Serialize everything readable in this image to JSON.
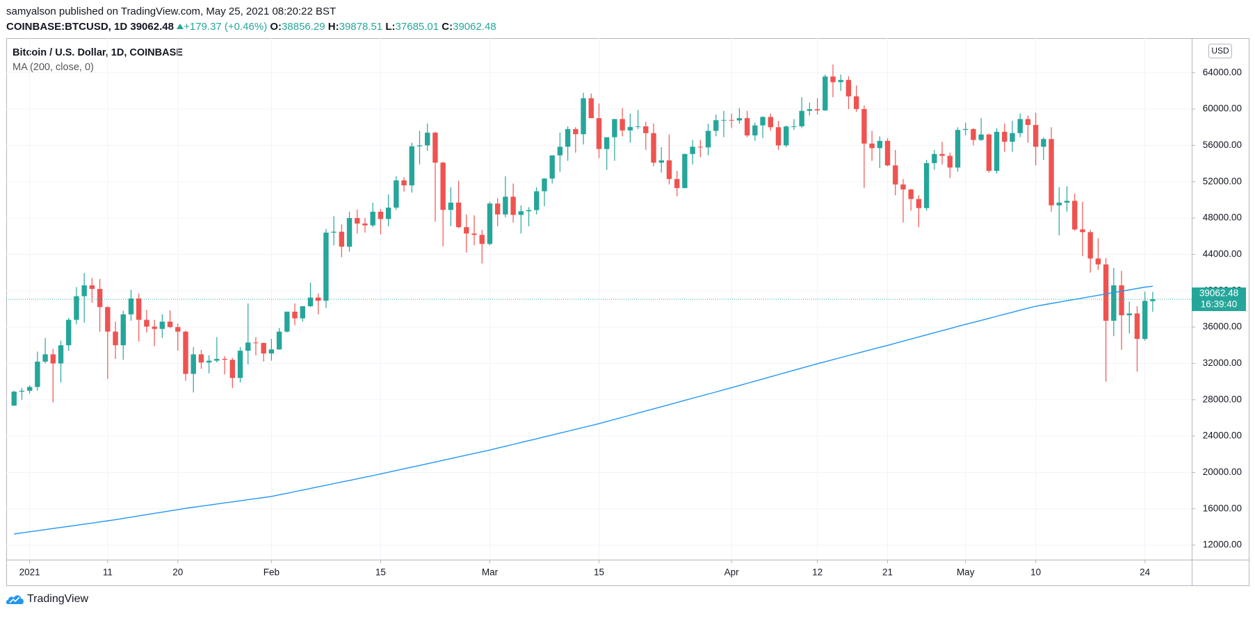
{
  "header": {
    "published": "samyalson published on TradingView.com, May 25, 2021 08:20:22 BST",
    "symbol": "COINBASE:BTCUSD, 1D",
    "change": "+179.37 (+0.46%)",
    "ohlc_labels": [
      "O:",
      "H:",
      "L:",
      "C:"
    ]
  },
  "footer": {
    "brand": "TradingView"
  },
  "chart_data": {
    "type": "candlestick",
    "title": "Bitcoin / U.S. Dollar, 1D, COINBASE",
    "currency": "USD",
    "countdown": "16:39:40",
    "up_color": "#26a69a",
    "down_color": "#ef5350",
    "grid": true,
    "x": [
      "2020-12-30",
      "2020-12-31",
      "2021-01-01",
      "2021-01-02",
      "2021-01-03",
      "2021-01-04",
      "2021-01-05",
      "2021-01-06",
      "2021-01-07",
      "2021-01-08",
      "2021-01-09",
      "2021-01-10",
      "2021-01-11",
      "2021-01-12",
      "2021-01-13",
      "2021-01-14",
      "2021-01-15",
      "2021-01-16",
      "2021-01-17",
      "2021-01-18",
      "2021-01-19",
      "2021-01-20",
      "2021-01-21",
      "2021-01-22",
      "2021-01-23",
      "2021-01-24",
      "2021-01-25",
      "2021-01-26",
      "2021-01-27",
      "2021-01-28",
      "2021-01-29",
      "2021-01-30",
      "2021-01-31",
      "2021-02-01",
      "2021-02-02",
      "2021-02-03",
      "2021-02-04",
      "2021-02-05",
      "2021-02-06",
      "2021-02-07",
      "2021-02-08",
      "2021-02-09",
      "2021-02-10",
      "2021-02-11",
      "2021-02-12",
      "2021-02-13",
      "2021-02-14",
      "2021-02-15",
      "2021-02-16",
      "2021-02-17",
      "2021-02-18",
      "2021-02-19",
      "2021-02-20",
      "2021-02-21",
      "2021-02-22",
      "2021-02-23",
      "2021-02-24",
      "2021-02-25",
      "2021-02-26",
      "2021-02-27",
      "2021-02-28",
      "2021-03-01",
      "2021-03-02",
      "2021-03-03",
      "2021-03-04",
      "2021-03-05",
      "2021-03-06",
      "2021-03-07",
      "2021-03-08",
      "2021-03-09",
      "2021-03-10",
      "2021-03-11",
      "2021-03-12",
      "2021-03-13",
      "2021-03-14",
      "2021-03-15",
      "2021-03-16",
      "2021-03-17",
      "2021-03-18",
      "2021-03-19",
      "2021-03-20",
      "2021-03-21",
      "2021-03-22",
      "2021-03-23",
      "2021-03-24",
      "2021-03-25",
      "2021-03-26",
      "2021-03-27",
      "2021-03-28",
      "2021-03-29",
      "2021-03-30",
      "2021-03-31",
      "2021-04-01",
      "2021-04-02",
      "2021-04-03",
      "2021-04-04",
      "2021-04-05",
      "2021-04-06",
      "2021-04-07",
      "2021-04-08",
      "2021-04-09",
      "2021-04-10",
      "2021-04-11",
      "2021-04-12",
      "2021-04-13",
      "2021-04-14",
      "2021-04-15",
      "2021-04-16",
      "2021-04-17",
      "2021-04-18",
      "2021-04-19",
      "2021-04-20",
      "2021-04-21",
      "2021-04-22",
      "2021-04-23",
      "2021-04-24",
      "2021-04-25",
      "2021-04-26",
      "2021-04-27",
      "2021-04-28",
      "2021-04-29",
      "2021-04-30",
      "2021-05-01",
      "2021-05-02",
      "2021-05-03",
      "2021-05-04",
      "2021-05-05",
      "2021-05-06",
      "2021-05-07",
      "2021-05-08",
      "2021-05-09",
      "2021-05-10",
      "2021-05-11",
      "2021-05-12",
      "2021-05-13",
      "2021-05-14",
      "2021-05-15",
      "2021-05-16",
      "2021-05-17",
      "2021-05-18",
      "2021-05-19",
      "2021-05-20",
      "2021-05-21",
      "2021-05-22",
      "2021-05-23",
      "2021-05-24",
      "2021-05-25"
    ],
    "open": [
      27360,
      28890,
      28990,
      29410,
      32200,
      33000,
      32000,
      34000,
      36800,
      39400,
      40600,
      40200,
      38200,
      35500,
      34000,
      37400,
      39150,
      36800,
      36050,
      35800,
      36600,
      36000,
      35500,
      30850,
      33000,
      32100,
      32300,
      32500,
      32400,
      30400,
      33400,
      34300,
      34250,
      33100,
      33540,
      35500,
      37700,
      36960,
      38300,
      39250,
      38900,
      46400,
      46500,
      44850,
      48000,
      47400,
      47200,
      48700,
      47900,
      49150,
      52150,
      51600,
      55900,
      56000,
      57400,
      54100,
      48900,
      49700,
      47000,
      46300,
      46150,
      45150,
      49600,
      48400,
      50350,
      48350,
      48750,
      48880,
      50950,
      52350,
      54900,
      55850,
      57800,
      57230,
      61190,
      59000,
      55600,
      56900,
      58900,
      57650,
      58030,
      58100,
      57350,
      54100,
      54350,
      52300,
      51300,
      55050,
      55850,
      55780,
      57600,
      58770,
      58800,
      58750,
      59000,
      57100,
      58200,
      59130,
      58000,
      56000,
      58080,
      58100,
      59800,
      59980,
      59850,
      63580,
      62960,
      63200,
      61400,
      60000,
      56200,
      55700,
      56500,
      53800,
      51700,
      51150,
      50100,
      49100,
      54050,
      55050,
      54850,
      53560,
      57700,
      57800,
      56600,
      57200,
      53200,
      57500,
      56400,
      57350,
      58900,
      58250,
      55850,
      56700,
      49400,
      49700,
      49900,
      46750,
      46450,
      43550,
      42900,
      36700,
      40600,
      37300,
      37500,
      34700,
      38856.29
    ],
    "high": [
      29000,
      29300,
      29600,
      33300,
      34800,
      33600,
      34500,
      37000,
      40400,
      41950,
      41400,
      41300,
      38300,
      36600,
      37800,
      40100,
      39700,
      37900,
      36800,
      37400,
      37850,
      36400,
      35600,
      33800,
      33500,
      32900,
      34900,
      32800,
      32600,
      33800,
      38600,
      34900,
      34300,
      34700,
      35900,
      37700,
      38600,
      38300,
      40900,
      39700,
      46800,
      48200,
      47300,
      48700,
      48950,
      48000,
      49700,
      49000,
      50600,
      52600,
      52500,
      56300,
      57600,
      58400,
      57500,
      54200,
      51400,
      52100,
      48400,
      48300,
      46700,
      49800,
      50200,
      52600,
      51800,
      49400,
      49200,
      51400,
      52400,
      54900,
      57400,
      58100,
      58000,
      61800,
      61700,
      60600,
      56900,
      58900,
      60100,
      59500,
      59900,
      58600,
      58400,
      55800,
      57200,
      53200,
      55100,
      56600,
      56600,
      58400,
      59400,
      59800,
      59500,
      60100,
      59800,
      58500,
      59200,
      59500,
      58700,
      58200,
      58900,
      61300,
      60700,
      61200,
      63800,
      64900,
      63800,
      63600,
      62600,
      60400,
      57600,
      57000,
      56800,
      55500,
      52300,
      51200,
      50500,
      54400,
      55500,
      56400,
      55200,
      58000,
      58500,
      57900,
      59000,
      57300,
      57900,
      58400,
      58700,
      59500,
      59300,
      59600,
      56900,
      58000,
      51400,
      51500,
      50700,
      49800,
      46700,
      45800,
      43600,
      42500,
      42200,
      38800,
      38300,
      39900,
      39878.51
    ],
    "low": [
      27320,
      28000,
      28700,
      29000,
      32000,
      27700,
      29900,
      33400,
      36300,
      36500,
      38700,
      35500,
      30300,
      32500,
      32400,
      36700,
      34400,
      35400,
      33900,
      34800,
      35900,
      33400,
      30100,
      28800,
      31400,
      30900,
      32100,
      30800,
      29300,
      29900,
      31900,
      32900,
      32200,
      32300,
      33500,
      35400,
      36200,
      36600,
      38200,
      37400,
      38100,
      45000,
      43700,
      44300,
      46300,
      46400,
      47000,
      46200,
      47100,
      48900,
      50900,
      50800,
      53900,
      55400,
      47600,
      44900,
      47100,
      46900,
      44200,
      45000,
      43000,
      45000,
      47100,
      48100,
      47500,
      46300,
      47100,
      48400,
      49300,
      51800,
      53100,
      54300,
      55200,
      56100,
      59000,
      54600,
      53300,
      54300,
      57000,
      56300,
      57800,
      55500,
      53700,
      53000,
      51700,
      50400,
      51300,
      53900,
      54700,
      54900,
      57000,
      56900,
      57900,
      58400,
      56900,
      56500,
      56800,
      57600,
      55500,
      55800,
      57700,
      57900,
      59300,
      59400,
      59800,
      61300,
      62000,
      60000,
      59700,
      51300,
      54300,
      53500,
      53700,
      50500,
      47500,
      48800,
      47000,
      48800,
      53300,
      53900,
      52400,
      53100,
      57100,
      56000,
      56500,
      53000,
      52900,
      55300,
      55300,
      56900,
      56300,
      53800,
      54400,
      48700,
      46100,
      48700,
      46600,
      43800,
      42000,
      42300,
      30000,
      35000,
      33500,
      35300,
      31100,
      34500,
      37685.01
    ],
    "close": [
      28890,
      28990,
      29410,
      32200,
      33000,
      32000,
      34000,
      36800,
      39400,
      40600,
      40200,
      38200,
      35500,
      34000,
      37400,
      39150,
      36800,
      36050,
      35800,
      36600,
      36000,
      35500,
      30850,
      33000,
      32100,
      32300,
      32500,
      32400,
      30400,
      33400,
      34300,
      34250,
      33100,
      33540,
      35500,
      37700,
      36960,
      38300,
      39250,
      38900,
      46400,
      46500,
      44850,
      48000,
      47400,
      47200,
      48700,
      47900,
      49150,
      52150,
      51600,
      55900,
      56000,
      57400,
      54100,
      48900,
      49700,
      47000,
      46300,
      46150,
      45150,
      49600,
      48400,
      50350,
      48350,
      48750,
      48880,
      50950,
      52350,
      54900,
      55850,
      57800,
      57230,
      61190,
      59000,
      55600,
      56900,
      58900,
      57650,
      58030,
      58100,
      57350,
      54100,
      54350,
      52300,
      51300,
      55050,
      55850,
      55780,
      57600,
      58770,
      58800,
      58750,
      59000,
      57100,
      58200,
      59130,
      58000,
      56000,
      58080,
      58100,
      59800,
      59980,
      59850,
      63580,
      62960,
      63200,
      61400,
      60000,
      56200,
      55700,
      56500,
      53800,
      51700,
      51150,
      50100,
      49100,
      54050,
      55050,
      54850,
      53560,
      57700,
      57800,
      56600,
      57200,
      53200,
      57500,
      56400,
      57350,
      58900,
      58250,
      55850,
      56700,
      49400,
      49700,
      49900,
      46750,
      46450,
      43550,
      42900,
      36700,
      40600,
      37300,
      37500,
      34700,
      38883.11,
      39062.48
    ],
    "ma": {
      "name": "MA (200, close, 0)",
      "color": "#2196f3",
      "values": [
        13230,
        13350,
        13470,
        13590,
        13710,
        13830,
        13950,
        14070,
        14190,
        14310,
        14430,
        14550,
        14680,
        14800,
        14940,
        15080,
        15220,
        15360,
        15500,
        15630,
        15770,
        15910,
        16050,
        16170,
        16290,
        16410,
        16530,
        16650,
        16760,
        16880,
        17000,
        17120,
        17240,
        17360,
        17540,
        17710,
        17890,
        18060,
        18240,
        18420,
        18590,
        18770,
        18950,
        19120,
        19300,
        19480,
        19650,
        19830,
        20020,
        20210,
        20400,
        20590,
        20770,
        20960,
        21150,
        21340,
        21530,
        21720,
        21910,
        22090,
        22280,
        22470,
        22680,
        22880,
        23090,
        23300,
        23500,
        23710,
        23920,
        24130,
        24330,
        24540,
        24750,
        24960,
        25160,
        25370,
        25600,
        25840,
        26070,
        26300,
        26540,
        26770,
        27000,
        27230,
        27470,
        27700,
        27930,
        28170,
        28400,
        28630,
        28860,
        29100,
        29330,
        29570,
        29810,
        30050,
        30290,
        30530,
        30770,
        31010,
        31250,
        31490,
        31730,
        31970,
        32190,
        32420,
        32640,
        32870,
        33090,
        33320,
        33540,
        33770,
        33990,
        34220,
        34450,
        34680,
        34920,
        35150,
        35380,
        35610,
        35840,
        36070,
        36300,
        36520,
        36740,
        36970,
        37190,
        37410,
        37630,
        37860,
        38080,
        38300,
        38450,
        38600,
        38750,
        38900,
        39050,
        39200,
        39350,
        39500,
        39650,
        39800,
        39950,
        40100,
        40250,
        40400,
        40500
      ]
    },
    "xlim": [
      "2020-12-29",
      "2021-05-30"
    ],
    "xticks": [
      {
        "value": "2021-01-01",
        "label": "2021"
      },
      {
        "value": "2021-01-11",
        "label": "11"
      },
      {
        "value": "2021-01-20",
        "label": "20"
      },
      {
        "value": "2021-02-01",
        "label": "Feb"
      },
      {
        "value": "2021-02-15",
        "label": "15"
      },
      {
        "value": "2021-03-01",
        "label": "Mar"
      },
      {
        "value": "2021-03-15",
        "label": "15"
      },
      {
        "value": "2021-04-01",
        "label": "Apr"
      },
      {
        "value": "2021-04-12",
        "label": "12"
      },
      {
        "value": "2021-04-21",
        "label": "21"
      },
      {
        "value": "2021-05-01",
        "label": "May"
      },
      {
        "value": "2021-05-10",
        "label": "10"
      },
      {
        "value": "2021-05-24",
        "label": "24"
      }
    ],
    "ylim": [
      10400,
      67800
    ],
    "yticks": [
      {
        "value": 12000,
        "label": "12000.00"
      },
      {
        "value": 16000,
        "label": "16000.00"
      },
      {
        "value": 20000,
        "label": "20000.00"
      },
      {
        "value": 24000,
        "label": "24000.00"
      },
      {
        "value": 28000,
        "label": "28000.00"
      },
      {
        "value": 32000,
        "label": "32000.00"
      },
      {
        "value": 36000,
        "label": "36000.00"
      },
      {
        "value": 40000,
        "label": "40000.00"
      },
      {
        "value": 44000,
        "label": "44000.00"
      },
      {
        "value": 48000,
        "label": "48000.00"
      },
      {
        "value": 52000,
        "label": "52000.00"
      },
      {
        "value": 56000,
        "label": "56000.00"
      },
      {
        "value": 60000,
        "label": "60000.00"
      },
      {
        "value": 64000,
        "label": "64000.00"
      }
    ]
  }
}
